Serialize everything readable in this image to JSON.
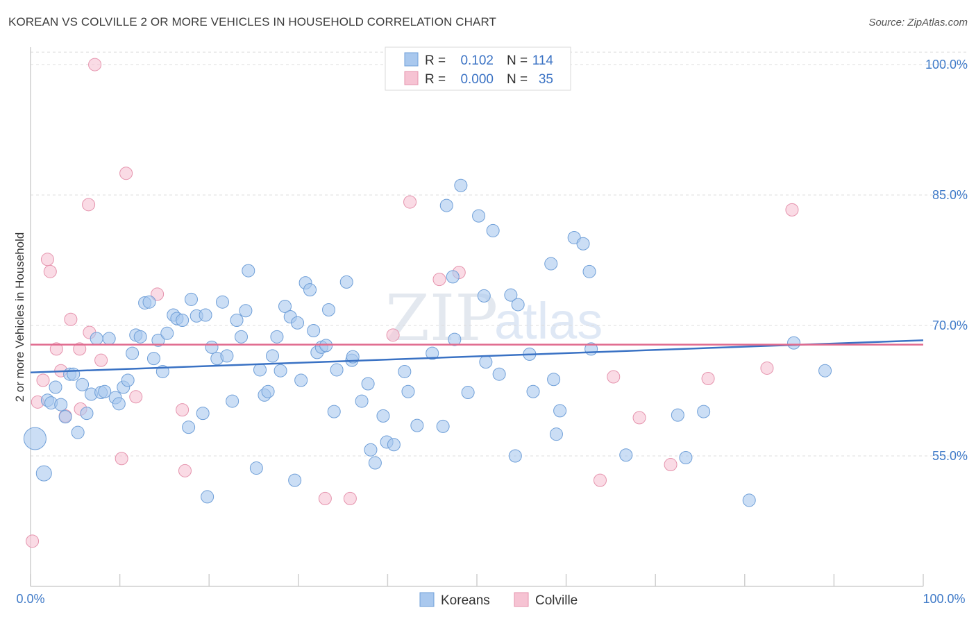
{
  "header": {
    "title": "KOREAN VS COLVILLE 2 OR MORE VEHICLES IN HOUSEHOLD CORRELATION CHART",
    "source": "Source: ZipAtlas.com"
  },
  "watermark": {
    "zip": "ZIP",
    "atlas": "atlas"
  },
  "legend_top": {
    "rows": [
      {
        "r_label": "R =",
        "r_value": "0.102",
        "n_label": "N =",
        "n_value": "114"
      },
      {
        "r_label": "R =",
        "r_value": "0.000",
        "n_label": "N =",
        "n_value": "35"
      }
    ]
  },
  "legend_bottom": {
    "items": [
      "Koreans",
      "Colville"
    ]
  },
  "colors": {
    "korean_fill": "#a9c8ee",
    "korean_stroke": "#6f9fd8",
    "korean_line": "#3a72c4",
    "colville_fill": "#f6c3d3",
    "colville_stroke": "#e593ad",
    "colville_line": "#e06a8e",
    "tick_text": "#3f7ac8",
    "grid": "#dcdcdc"
  },
  "chart_data": {
    "type": "scatter",
    "title": "KOREAN VS COLVILLE 2 OR MORE VEHICLES IN HOUSEHOLD CORRELATION CHART",
    "xlabel": "",
    "ylabel": "2 or more Vehicles in Household",
    "xlim": [
      0,
      100
    ],
    "ylim": [
      40,
      102
    ],
    "x_tick_labels": [
      "0.0%",
      "100.0%"
    ],
    "y_ticks": [
      55,
      70,
      85,
      100
    ],
    "y_tick_labels": [
      "55.0%",
      "70.0%",
      "85.0%",
      "100.0%"
    ],
    "grid": "horizontal dashed",
    "legend_position": "top-center",
    "series": [
      {
        "name": "Koreans",
        "R": 0.102,
        "N": 114,
        "trend": {
          "x": [
            0,
            100
          ],
          "y": [
            64.6,
            68.3
          ]
        },
        "points": [
          [
            0.5,
            57.0,
            16
          ],
          [
            1.5,
            53.0,
            11
          ],
          [
            1.9,
            61.4,
            9
          ],
          [
            2.3,
            61.1,
            9
          ],
          [
            2.8,
            62.9,
            9
          ],
          [
            3.4,
            60.9,
            9
          ],
          [
            3.9,
            59.5,
            9
          ],
          [
            4.4,
            64.4,
            9
          ],
          [
            4.8,
            64.4,
            9
          ],
          [
            5.3,
            57.7,
            9
          ],
          [
            5.8,
            63.2,
            9
          ],
          [
            6.3,
            59.9,
            9
          ],
          [
            6.8,
            62.1,
            9
          ],
          [
            7.4,
            68.5,
            9
          ],
          [
            7.9,
            62.3,
            9
          ],
          [
            8.3,
            62.4,
            9
          ],
          [
            8.8,
            68.5,
            9
          ],
          [
            9.5,
            61.7,
            9
          ],
          [
            9.9,
            61.0,
            9
          ],
          [
            10.4,
            62.9,
            9
          ],
          [
            10.9,
            63.7,
            9
          ],
          [
            11.4,
            66.8,
            9
          ],
          [
            11.8,
            68.9,
            9
          ],
          [
            12.3,
            68.7,
            9
          ],
          [
            12.8,
            72.6,
            9
          ],
          [
            13.3,
            72.7,
            9
          ],
          [
            13.8,
            66.2,
            9
          ],
          [
            14.3,
            68.3,
            9
          ],
          [
            14.8,
            64.7,
            9
          ],
          [
            15.3,
            69.1,
            9
          ],
          [
            16.0,
            71.2,
            9
          ],
          [
            16.4,
            70.8,
            9
          ],
          [
            17.0,
            70.6,
            9
          ],
          [
            17.7,
            58.3,
            9
          ],
          [
            18.0,
            73.0,
            9
          ],
          [
            18.6,
            71.1,
            9
          ],
          [
            19.3,
            59.9,
            9
          ],
          [
            19.6,
            71.2,
            9
          ],
          [
            19.8,
            50.3,
            9
          ],
          [
            20.3,
            67.5,
            9
          ],
          [
            20.9,
            66.2,
            9
          ],
          [
            21.5,
            72.7,
            9
          ],
          [
            22.0,
            66.5,
            9
          ],
          [
            22.6,
            61.3,
            9
          ],
          [
            23.1,
            70.6,
            9
          ],
          [
            23.6,
            68.7,
            9
          ],
          [
            24.1,
            71.7,
            9
          ],
          [
            24.4,
            76.3,
            9
          ],
          [
            25.3,
            53.6,
            9
          ],
          [
            25.7,
            64.9,
            9
          ],
          [
            26.2,
            62.0,
            9
          ],
          [
            26.6,
            62.4,
            9
          ],
          [
            27.1,
            66.5,
            9
          ],
          [
            27.6,
            68.7,
            9
          ],
          [
            28.0,
            64.8,
            9
          ],
          [
            28.5,
            72.2,
            9
          ],
          [
            29.1,
            71.0,
            9
          ],
          [
            29.6,
            52.2,
            9
          ],
          [
            29.9,
            70.3,
            9
          ],
          [
            30.3,
            63.7,
            9
          ],
          [
            30.8,
            74.9,
            9
          ],
          [
            31.3,
            74.1,
            9
          ],
          [
            31.7,
            69.4,
            9
          ],
          [
            32.1,
            66.9,
            9
          ],
          [
            32.6,
            67.5,
            9
          ],
          [
            33.1,
            67.7,
            9
          ],
          [
            33.4,
            71.8,
            9
          ],
          [
            34.0,
            60.1,
            9
          ],
          [
            34.3,
            64.9,
            9
          ],
          [
            35.4,
            75.0,
            9
          ],
          [
            36.0,
            66.0,
            9
          ],
          [
            36.1,
            66.4,
            9
          ],
          [
            37.1,
            61.3,
            9
          ],
          [
            37.8,
            63.3,
            9
          ],
          [
            38.1,
            55.7,
            9
          ],
          [
            38.6,
            54.2,
            9
          ],
          [
            39.5,
            59.6,
            9
          ],
          [
            39.9,
            56.6,
            9
          ],
          [
            40.7,
            56.3,
            9
          ],
          [
            41.9,
            64.7,
            9
          ],
          [
            42.3,
            62.4,
            9
          ],
          [
            43.3,
            58.5,
            9
          ],
          [
            45.0,
            66.8,
            9
          ],
          [
            46.2,
            58.4,
            9
          ],
          [
            46.6,
            83.8,
            9
          ],
          [
            47.3,
            75.6,
            9
          ],
          [
            47.5,
            68.4,
            9
          ],
          [
            48.2,
            86.1,
            9
          ],
          [
            49.0,
            62.3,
            9
          ],
          [
            50.2,
            82.6,
            9
          ],
          [
            50.8,
            73.4,
            9
          ],
          [
            51.0,
            65.8,
            9
          ],
          [
            51.8,
            80.9,
            9
          ],
          [
            52.5,
            64.4,
            9
          ],
          [
            53.8,
            73.5,
            9
          ],
          [
            54.3,
            55.0,
            9
          ],
          [
            54.6,
            72.4,
            9
          ],
          [
            55.9,
            66.7,
            9
          ],
          [
            56.3,
            62.4,
            9
          ],
          [
            58.3,
            77.1,
            9
          ],
          [
            58.6,
            63.8,
            9
          ],
          [
            58.9,
            57.5,
            9
          ],
          [
            59.3,
            60.2,
            9
          ],
          [
            60.9,
            80.1,
            9
          ],
          [
            61.9,
            79.4,
            9
          ],
          [
            62.6,
            76.2,
            9
          ],
          [
            62.8,
            67.3,
            9
          ],
          [
            66.7,
            55.1,
            9
          ],
          [
            72.5,
            59.7,
            9
          ],
          [
            73.4,
            54.8,
            9
          ],
          [
            75.4,
            60.1,
            9
          ],
          [
            80.5,
            49.9,
            9
          ],
          [
            85.5,
            68.0,
            9
          ],
          [
            89.0,
            64.8,
            9
          ]
        ]
      },
      {
        "name": "Colville",
        "R": 0.0,
        "N": 35,
        "trend": {
          "x": [
            0,
            100
          ],
          "y": [
            67.8,
            67.8
          ]
        },
        "points": [
          [
            0.2,
            45.2,
            9
          ],
          [
            0.8,
            61.2,
            9
          ],
          [
            1.4,
            63.7,
            9
          ],
          [
            1.9,
            77.6,
            9
          ],
          [
            2.2,
            76.2,
            9
          ],
          [
            2.9,
            67.3,
            9
          ],
          [
            3.4,
            64.8,
            9
          ],
          [
            3.9,
            59.6,
            9
          ],
          [
            4.5,
            70.7,
            9
          ],
          [
            5.5,
            67.3,
            9
          ],
          [
            5.6,
            60.4,
            9
          ],
          [
            6.5,
            83.9,
            9
          ],
          [
            6.6,
            69.2,
            9
          ],
          [
            7.2,
            100.0,
            9
          ],
          [
            7.9,
            66.0,
            9
          ],
          [
            10.2,
            54.7,
            9
          ],
          [
            10.7,
            87.5,
            9
          ],
          [
            11.8,
            61.8,
            9
          ],
          [
            14.2,
            73.6,
            9
          ],
          [
            17.0,
            60.3,
            9
          ],
          [
            17.3,
            53.3,
            9
          ],
          [
            33.0,
            50.1,
            9
          ],
          [
            35.8,
            50.1,
            9
          ],
          [
            40.6,
            68.9,
            9
          ],
          [
            42.5,
            84.2,
            9
          ],
          [
            45.8,
            75.3,
            9
          ],
          [
            48.0,
            76.1,
            9
          ],
          [
            53.2,
            100.0,
            9
          ],
          [
            63.8,
            52.2,
            9
          ],
          [
            65.3,
            64.1,
            9
          ],
          [
            68.2,
            59.4,
            9
          ],
          [
            71.7,
            54.0,
            9
          ],
          [
            75.9,
            63.9,
            9
          ],
          [
            82.5,
            65.1,
            9
          ],
          [
            85.3,
            83.3,
            9
          ]
        ]
      }
    ]
  }
}
